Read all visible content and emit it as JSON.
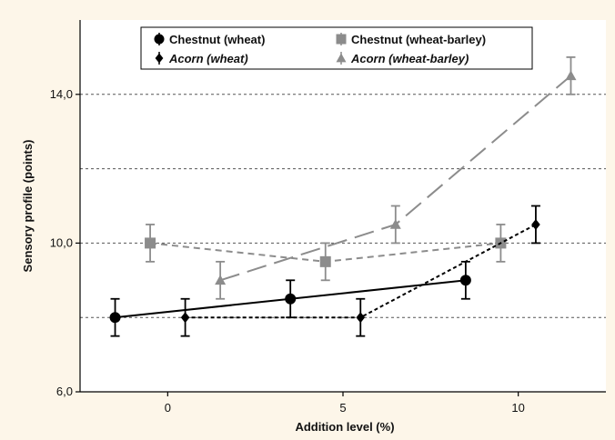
{
  "chart_data": {
    "type": "line",
    "xlabel": "Addition level (%)",
    "ylabel": "Sensory profile (points)",
    "xlim": [
      -2.5,
      12.5
    ],
    "ylim": [
      6.0,
      16.0
    ],
    "x_ticks": [
      0,
      5,
      10
    ],
    "x_tick_labels": [
      "0",
      "5",
      "10"
    ],
    "y_ticks": [
      6.0,
      10.0,
      14.0
    ],
    "y_tick_labels": [
      "6,0",
      "10,0",
      "14,0"
    ],
    "gridlines_y": [
      8.0,
      10.0,
      12.0,
      14.0
    ],
    "grid": true,
    "legend_position": "top",
    "series": [
      {
        "name": "Chestnut (wheat)",
        "italic": false,
        "marker": "circle",
        "color": "#000000",
        "line_style": "solid",
        "points": [
          {
            "x": -1.5,
            "y": 8.0,
            "err": 0.5
          },
          {
            "x": 3.5,
            "y": 8.5,
            "err": 0.5
          },
          {
            "x": 8.5,
            "y": 9.0,
            "err": 0.5
          }
        ]
      },
      {
        "name": "Chestnut (wheat-barley)",
        "italic": false,
        "marker": "square",
        "color": "#8c8c8c",
        "line_style": "dashed",
        "points": [
          {
            "x": -0.5,
            "y": 10.0,
            "err": 0.5
          },
          {
            "x": 4.5,
            "y": 9.5,
            "err": 0.5
          },
          {
            "x": 9.5,
            "y": 10.0,
            "err": 0.5
          }
        ]
      },
      {
        "name": "Acorn (wheat)",
        "italic": true,
        "marker": "diamond",
        "color": "#000000",
        "line_style": "dotted",
        "points": [
          {
            "x": 0.5,
            "y": 8.0,
            "err": 0.5
          },
          {
            "x": 5.5,
            "y": 8.0,
            "err": 0.5
          },
          {
            "x": 10.5,
            "y": 10.5,
            "err": 0.5
          }
        ]
      },
      {
        "name": "Acorn (wheat-barley)",
        "italic": true,
        "marker": "triangle",
        "color": "#8c8c8c",
        "line_style": "longdash",
        "points": [
          {
            "x": 1.5,
            "y": 9.0,
            "err": 0.5
          },
          {
            "x": 6.5,
            "y": 10.5,
            "err": 0.5
          },
          {
            "x": 11.5,
            "y": 14.5,
            "err": 0.5
          }
        ]
      }
    ]
  }
}
